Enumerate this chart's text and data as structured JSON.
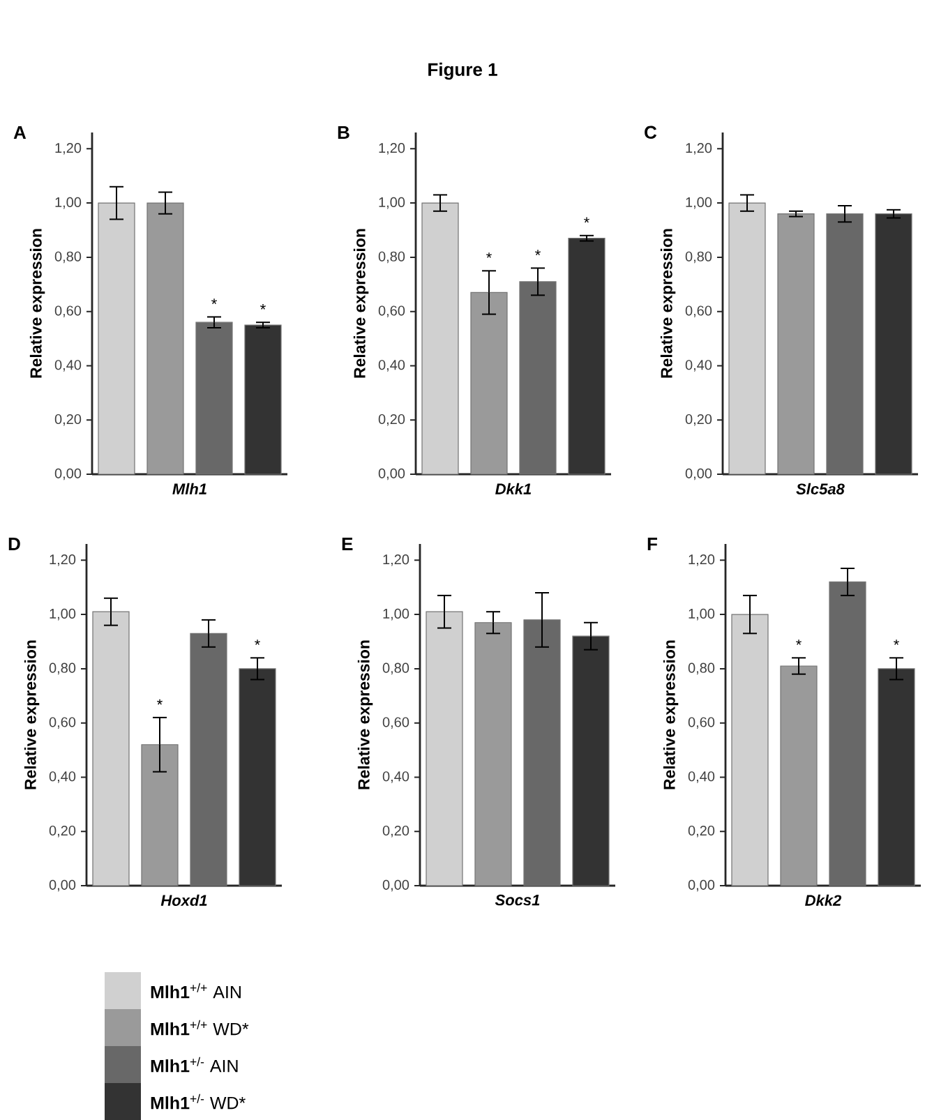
{
  "chart_data": [
    {
      "type": "bar",
      "title": "A",
      "ylabel": "Relative expression",
      "xlabel": "Mlh1",
      "categories": [
        null,
        null,
        null,
        null
      ],
      "ylim": [
        0,
        1.26
      ],
      "yticks": [
        {
          "value": 0,
          "label": "0,00"
        },
        {
          "value": 0.2,
          "label": "0,20"
        },
        {
          "value": 0.4,
          "label": "0,40"
        },
        {
          "value": 0.6,
          "label": "0,60"
        },
        {
          "value": 0.8,
          "label": "0,80"
        },
        {
          "value": 1.0,
          "label": "1,00"
        },
        {
          "value": 1.2,
          "label": "1,20"
        }
      ],
      "annotations": [
        "Figure 1"
      ],
      "colors": [
        "#d0d0d0",
        "#9a9a9a",
        "#686868",
        "#333333"
      ],
      "values": [
        1.0,
        1.0,
        0.56,
        0.55
      ],
      "errors": [
        0.06,
        0.04,
        0.02,
        0.01
      ],
      "value_labels": [
        null,
        null,
        "*",
        "*"
      ]
    },
    {
      "type": "bar",
      "title": "B",
      "ylabel": "Relative expression",
      "xlabel": "Dkk1",
      "categories": [
        null,
        null,
        null,
        null
      ],
      "ylim": [
        0,
        1.26
      ],
      "yticks": [
        {
          "value": 0,
          "label": "0,00"
        },
        {
          "value": 0.2,
          "label": "0,20"
        },
        {
          "value": 0.4,
          "label": "0,40"
        },
        {
          "value": 0.6,
          "label": "0,60"
        },
        {
          "value": 0.8,
          "label": "0,80"
        },
        {
          "value": 1.0,
          "label": "1,00"
        },
        {
          "value": 1.2,
          "label": "1,20"
        }
      ],
      "colors": [
        "#d0d0d0",
        "#9a9a9a",
        "#686868",
        "#333333"
      ],
      "values": [
        1.0,
        0.67,
        0.71,
        0.87
      ],
      "errors": [
        0.03,
        0.08,
        0.05,
        0.01
      ],
      "value_labels": [
        null,
        "*",
        "*",
        "*"
      ]
    },
    {
      "type": "bar",
      "title": "C",
      "ylabel": "Relative expression",
      "xlabel": "Slc5a8",
      "categories": [
        null,
        null,
        null,
        null
      ],
      "ylim": [
        0,
        1.26
      ],
      "yticks": [
        {
          "value": 0,
          "label": "0,00"
        },
        {
          "value": 0.2,
          "label": "0,20"
        },
        {
          "value": 0.4,
          "label": "0,40"
        },
        {
          "value": 0.6,
          "label": "0,60"
        },
        {
          "value": 0.8,
          "label": "0,80"
        },
        {
          "value": 1.0,
          "label": "1,00"
        },
        {
          "value": 1.2,
          "label": "1,20"
        }
      ],
      "colors": [
        "#d0d0d0",
        "#9a9a9a",
        "#686868",
        "#333333"
      ],
      "values": [
        1.0,
        0.96,
        0.96,
        0.96
      ],
      "errors": [
        0.03,
        0.01,
        0.03,
        0.015
      ]
    },
    {
      "type": "bar",
      "title": "D",
      "ylabel": "Relative expression",
      "xlabel": "Hoxd1",
      "categories": [
        null,
        null,
        null,
        null
      ],
      "ylim": [
        0,
        1.26
      ],
      "yticks": [
        {
          "value": 0,
          "label": "0,00"
        },
        {
          "value": 0.2,
          "label": "0,20"
        },
        {
          "value": 0.4,
          "label": "0,40"
        },
        {
          "value": 0.6,
          "label": "0,60"
        },
        {
          "value": 0.8,
          "label": "0,80"
        },
        {
          "value": 1.0,
          "label": "1,00"
        },
        {
          "value": 1.2,
          "label": "1,20"
        }
      ],
      "colors": [
        "#d0d0d0",
        "#9a9a9a",
        "#686868",
        "#333333"
      ],
      "values": [
        1.01,
        0.52,
        0.93,
        0.8
      ],
      "errors": [
        0.05,
        0.1,
        0.05,
        0.04
      ],
      "value_labels": [
        null,
        "*",
        null,
        "*"
      ]
    },
    {
      "type": "bar",
      "title": "E",
      "ylabel": "Relative expression",
      "xlabel": "Socs1",
      "categories": [
        null,
        null,
        null,
        null
      ],
      "ylim": [
        0,
        1.26
      ],
      "yticks": [
        {
          "value": 0,
          "label": "0,00"
        },
        {
          "value": 0.2,
          "label": "0,20"
        },
        {
          "value": 0.4,
          "label": "0,40"
        },
        {
          "value": 0.6,
          "label": "0,60"
        },
        {
          "value": 0.8,
          "label": "0,80"
        },
        {
          "value": 1.0,
          "label": "1,00"
        },
        {
          "value": 1.2,
          "label": "1,20"
        }
      ],
      "colors": [
        "#d0d0d0",
        "#9a9a9a",
        "#686868",
        "#333333"
      ],
      "values": [
        1.01,
        0.97,
        0.98,
        0.92
      ],
      "errors": [
        0.06,
        0.04,
        0.1,
        0.05
      ]
    },
    {
      "type": "bar",
      "title": "F",
      "ylabel": "Relative expression",
      "xlabel": "Dkk2",
      "categories": [
        null,
        null,
        null,
        null
      ],
      "ylim": [
        0,
        1.26
      ],
      "yticks": [
        {
          "value": 0,
          "label": "0,00"
        },
        {
          "value": 0.2,
          "label": "0,20"
        },
        {
          "value": 0.4,
          "label": "0,40"
        },
        {
          "value": 0.6,
          "label": "0,60"
        },
        {
          "value": 0.8,
          "label": "0,80"
        },
        {
          "value": 1.0,
          "label": "1,00"
        },
        {
          "value": 1.2,
          "label": "1,20"
        }
      ],
      "colors": [
        "#d0d0d0",
        "#9a9a9a",
        "#686868",
        "#333333"
      ],
      "values": [
        1.0,
        0.81,
        1.12,
        0.8
      ],
      "errors": [
        0.07,
        0.03,
        0.05,
        0.04
      ],
      "value_labels": [
        null,
        "*",
        null,
        "*"
      ]
    },
    {
      "type": "other",
      "annotations": [
        "**Mlh1**$^{+/+}$ AIN",
        "**Mlh1**$^{+/+}$ WD*",
        "**Mlh1**$^{+/-}$ AIN",
        "**Mlh1**$^{+/-}$ WD*"
      ]
    }
  ]
}
